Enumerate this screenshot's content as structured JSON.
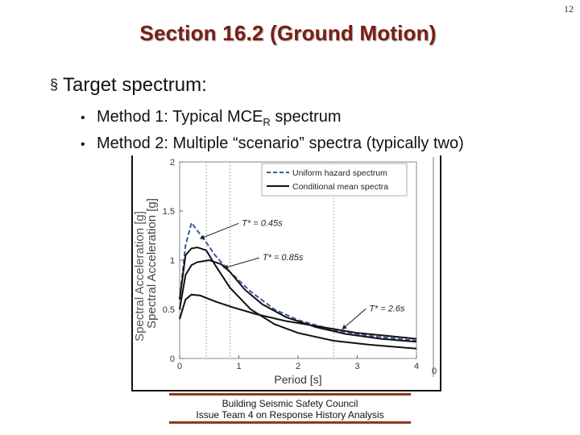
{
  "page_number": "12",
  "title": "Section 16.2 (Ground Motion)",
  "bullet": {
    "mark": "§",
    "text": "Target spectrum:"
  },
  "subbullets": [
    {
      "dot": "•",
      "pre": "Method 1: Typical MCE",
      "sub": "R",
      "post": " spectrum"
    },
    {
      "dot": "•",
      "text": "Method 2: Multiple “scenario” spectra (typically two)"
    }
  ],
  "footer": {
    "line1": "Building Seismic Safety Council",
    "line2": "Issue Team 4 on Response History Analysis"
  },
  "chart_data": {
    "type": "line",
    "xlabel": "Period [s]",
    "ylabel": "Spectral Acceleration [g]",
    "xlim": [
      0,
      4
    ],
    "ylim": [
      0,
      2
    ],
    "x_ticks": [
      "0",
      "1",
      "2",
      "3",
      "4"
    ],
    "y_ticks": [
      "0",
      "0.5",
      "1",
      "1.5",
      "2"
    ],
    "right_axis_tick": "0",
    "grid": "dotted vertical reference lines at T*",
    "legend_position": "top-right",
    "series": [
      {
        "name": "Uniform hazard spectrum",
        "style": "dashed",
        "color": "#3a5aa0",
        "x": [
          0,
          0.1,
          0.2,
          0.3,
          0.45,
          0.6,
          0.85,
          1.2,
          1.6,
          2.0,
          2.6,
          3.2,
          4.0
        ],
        "y": [
          0.6,
          1.15,
          1.38,
          1.3,
          1.18,
          1.05,
          0.88,
          0.68,
          0.5,
          0.39,
          0.29,
          0.23,
          0.18
        ]
      },
      {
        "name": "Conditional mean spectra",
        "style": "solid",
        "color": "#111111",
        "x": [
          0,
          0.1,
          0.2,
          0.3,
          0.45,
          0.6,
          0.85,
          1.2,
          1.6,
          2.0,
          2.6,
          3.2,
          4.0
        ],
        "y": [
          0.6,
          1.05,
          1.12,
          1.13,
          1.1,
          0.95,
          0.72,
          0.5,
          0.35,
          0.26,
          0.18,
          0.14,
          0.1
        ]
      },
      {
        "name": "",
        "style": "solid",
        "color": "#111111",
        "x": [
          0,
          0.1,
          0.2,
          0.3,
          0.5,
          0.7,
          0.85,
          1.1,
          1.4,
          1.8,
          2.3,
          2.8,
          3.4,
          4.0
        ],
        "y": [
          0.5,
          0.85,
          0.95,
          0.98,
          1.0,
          0.96,
          0.88,
          0.7,
          0.55,
          0.42,
          0.32,
          0.25,
          0.2,
          0.17
        ]
      },
      {
        "name": "",
        "style": "solid",
        "color": "#111111",
        "x": [
          0,
          0.1,
          0.2,
          0.35,
          0.6,
          0.9,
          1.3,
          1.8,
          2.3,
          2.6,
          3.0,
          3.5,
          4.0
        ],
        "y": [
          0.4,
          0.6,
          0.65,
          0.64,
          0.58,
          0.52,
          0.45,
          0.38,
          0.33,
          0.3,
          0.26,
          0.23,
          0.2
        ]
      }
    ],
    "annotations": [
      {
        "text": "T* = 0.45s",
        "x": 0.45
      },
      {
        "text": "T* = 0.85s",
        "x": 0.85
      },
      {
        "text": "T* = 2.6s",
        "x": 2.6
      }
    ]
  }
}
